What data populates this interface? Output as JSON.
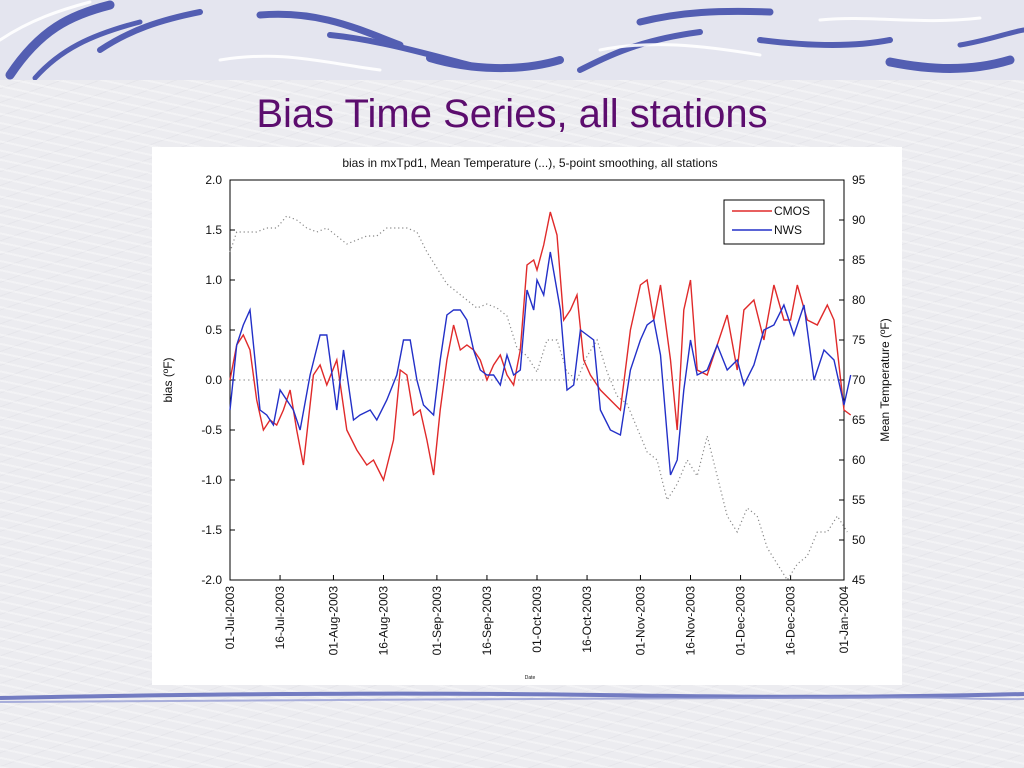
{
  "slide": {
    "title": "Bias Time Series, all stations"
  },
  "chart_data": {
    "type": "line",
    "title": "bias in mxTpd1, Mean Temperature (...), 5-point smoothing, all stations",
    "xlabel": "Date",
    "ylabel": "bias (ºF)",
    "y2label": "Mean Temperature (ºF)",
    "xlim": [
      "2003-07-01",
      "2004-01-01"
    ],
    "ylim": [
      -2.0,
      2.0
    ],
    "y2lim": [
      45,
      95
    ],
    "xticks": [
      "01-Jul-2003",
      "16-Jul-2003",
      "01-Aug-2003",
      "16-Aug-2003",
      "01-Sep-2003",
      "16-Sep-2003",
      "01-Oct-2003",
      "16-Oct-2003",
      "01-Nov-2003",
      "16-Nov-2003",
      "01-Dec-2003",
      "16-Dec-2003",
      "01-Jan-2004"
    ],
    "yticks": [
      "-2.0",
      "-1.5",
      "-1.0",
      "-0.5",
      "0.0",
      "0.5",
      "1.0",
      "1.5",
      "2.0"
    ],
    "y2ticks": [
      "45",
      "50",
      "55",
      "60",
      "65",
      "70",
      "75",
      "80",
      "85",
      "90",
      "95"
    ],
    "legend_position": "top-right",
    "grid": false,
    "zero_line": true,
    "series": [
      {
        "name": "CMOS",
        "axis": "left",
        "color": "#e02a2a",
        "x": [
          "2003-07-01",
          "2003-07-03",
          "2003-07-05",
          "2003-07-07",
          "2003-07-09",
          "2003-07-11",
          "2003-07-13",
          "2003-07-15",
          "2003-07-17",
          "2003-07-19",
          "2003-07-21",
          "2003-07-23",
          "2003-07-26",
          "2003-07-28",
          "2003-07-30",
          "2003-08-02",
          "2003-08-05",
          "2003-08-08",
          "2003-08-11",
          "2003-08-13",
          "2003-08-16",
          "2003-08-19",
          "2003-08-21",
          "2003-08-23",
          "2003-08-25",
          "2003-08-27",
          "2003-08-29",
          "2003-08-31",
          "2003-09-02",
          "2003-09-04",
          "2003-09-06",
          "2003-09-08",
          "2003-09-10",
          "2003-09-12",
          "2003-09-14",
          "2003-09-16",
          "2003-09-18",
          "2003-09-20",
          "2003-09-22",
          "2003-09-24",
          "2003-09-26",
          "2003-09-28",
          "2003-09-30",
          "2003-10-01",
          "2003-10-03",
          "2003-10-05",
          "2003-10-07",
          "2003-10-09",
          "2003-10-11",
          "2003-10-13",
          "2003-10-15",
          "2003-10-17",
          "2003-10-20",
          "2003-10-23",
          "2003-10-26",
          "2003-10-29",
          "2003-11-01",
          "2003-11-03",
          "2003-11-05",
          "2003-11-07",
          "2003-11-10",
          "2003-11-12",
          "2003-11-14",
          "2003-11-16",
          "2003-11-18",
          "2003-11-21",
          "2003-11-24",
          "2003-11-27",
          "2003-11-30",
          "2003-12-02",
          "2003-12-05",
          "2003-12-08",
          "2003-12-11",
          "2003-12-14",
          "2003-12-16",
          "2003-12-18",
          "2003-12-21",
          "2003-12-24",
          "2003-12-27",
          "2003-12-29",
          "2004-01-01",
          "2004-01-03"
        ],
        "values": [
          0.0,
          0.35,
          0.45,
          0.3,
          -0.2,
          -0.5,
          -0.4,
          -0.45,
          -0.3,
          -0.1,
          -0.5,
          -0.85,
          0.05,
          0.15,
          -0.05,
          0.2,
          -0.5,
          -0.7,
          -0.85,
          -0.8,
          -1.0,
          -0.6,
          0.1,
          0.05,
          -0.35,
          -0.3,
          -0.6,
          -0.95,
          -0.3,
          0.2,
          0.55,
          0.3,
          0.35,
          0.3,
          0.2,
          0.0,
          0.15,
          0.25,
          0.05,
          -0.05,
          0.3,
          1.15,
          1.2,
          1.1,
          1.35,
          1.68,
          1.45,
          0.6,
          0.7,
          0.85,
          0.2,
          0.05,
          -0.1,
          -0.2,
          -0.3,
          0.5,
          0.95,
          1.0,
          0.6,
          0.95,
          0.2,
          -0.5,
          0.7,
          1.0,
          0.1,
          0.05,
          0.35,
          0.65,
          0.1,
          0.7,
          0.8,
          0.4,
          0.95,
          0.6,
          0.6,
          0.95,
          0.6,
          0.55,
          0.75,
          0.6,
          -0.3,
          -0.35
        ]
      },
      {
        "name": "NWS",
        "axis": "left",
        "color": "#2330c8",
        "x": [
          "2003-07-01",
          "2003-07-03",
          "2003-07-05",
          "2003-07-07",
          "2003-07-10",
          "2003-07-12",
          "2003-07-14",
          "2003-07-16",
          "2003-07-18",
          "2003-07-20",
          "2003-07-22",
          "2003-07-25",
          "2003-07-28",
          "2003-07-30",
          "2003-08-02",
          "2003-08-04",
          "2003-08-07",
          "2003-08-09",
          "2003-08-12",
          "2003-08-14",
          "2003-08-17",
          "2003-08-20",
          "2003-08-22",
          "2003-08-24",
          "2003-08-26",
          "2003-08-28",
          "2003-08-31",
          "2003-09-02",
          "2003-09-04",
          "2003-09-06",
          "2003-09-08",
          "2003-09-10",
          "2003-09-12",
          "2003-09-14",
          "2003-09-16",
          "2003-09-18",
          "2003-09-20",
          "2003-09-22",
          "2003-09-24",
          "2003-09-26",
          "2003-09-28",
          "2003-09-30",
          "2003-10-01",
          "2003-10-03",
          "2003-10-05",
          "2003-10-08",
          "2003-10-10",
          "2003-10-12",
          "2003-10-14",
          "2003-10-16",
          "2003-10-18",
          "2003-10-20",
          "2003-10-23",
          "2003-10-26",
          "2003-10-29",
          "2003-11-01",
          "2003-11-03",
          "2003-11-05",
          "2003-11-07",
          "2003-11-10",
          "2003-11-12",
          "2003-11-14",
          "2003-11-16",
          "2003-11-18",
          "2003-11-21",
          "2003-11-24",
          "2003-11-27",
          "2003-11-30",
          "2003-12-02",
          "2003-12-05",
          "2003-12-08",
          "2003-12-11",
          "2003-12-14",
          "2003-12-17",
          "2003-12-20",
          "2003-12-23",
          "2003-12-26",
          "2003-12-29",
          "2004-01-01",
          "2004-01-03"
        ],
        "values": [
          -0.3,
          0.35,
          0.55,
          0.7,
          -0.3,
          -0.35,
          -0.45,
          -0.1,
          -0.2,
          -0.3,
          -0.5,
          0.05,
          0.45,
          0.45,
          -0.3,
          0.3,
          -0.4,
          -0.35,
          -0.3,
          -0.4,
          -0.2,
          0.05,
          0.4,
          0.4,
          0.0,
          -0.25,
          -0.35,
          0.2,
          0.65,
          0.7,
          0.7,
          0.6,
          0.3,
          0.1,
          0.05,
          0.05,
          -0.05,
          0.25,
          0.05,
          0.1,
          0.9,
          0.7,
          1.0,
          0.85,
          1.28,
          0.7,
          -0.1,
          -0.05,
          0.5,
          0.45,
          0.4,
          -0.3,
          -0.5,
          -0.55,
          0.1,
          0.4,
          0.55,
          0.6,
          0.25,
          -0.95,
          -0.8,
          -0.1,
          0.4,
          0.05,
          0.1,
          0.35,
          0.1,
          0.2,
          -0.05,
          0.15,
          0.5,
          0.55,
          0.75,
          0.45,
          0.75,
          0.0,
          0.3,
          0.2,
          -0.25,
          0.05
        ]
      },
      {
        "name": "",
        "axis": "right",
        "color": "#888888",
        "style": "dotted",
        "x": [
          "2003-07-01",
          "2003-07-03",
          "2003-07-06",
          "2003-07-09",
          "2003-07-12",
          "2003-07-15",
          "2003-07-18",
          "2003-07-21",
          "2003-07-24",
          "2003-07-27",
          "2003-07-30",
          "2003-08-02",
          "2003-08-05",
          "2003-08-08",
          "2003-08-11",
          "2003-08-14",
          "2003-08-17",
          "2003-08-20",
          "2003-08-23",
          "2003-08-26",
          "2003-08-29",
          "2003-09-01",
          "2003-09-04",
          "2003-09-07",
          "2003-09-10",
          "2003-09-13",
          "2003-09-16",
          "2003-09-19",
          "2003-09-22",
          "2003-09-25",
          "2003-09-28",
          "2003-10-01",
          "2003-10-04",
          "2003-10-07",
          "2003-10-10",
          "2003-10-13",
          "2003-10-16",
          "2003-10-19",
          "2003-10-22",
          "2003-10-25",
          "2003-10-28",
          "2003-10-31",
          "2003-11-03",
          "2003-11-06",
          "2003-11-09",
          "2003-11-12",
          "2003-11-15",
          "2003-11-18",
          "2003-11-21",
          "2003-11-24",
          "2003-11-27",
          "2003-11-30",
          "2003-12-03",
          "2003-12-06",
          "2003-12-09",
          "2003-12-12",
          "2003-12-15",
          "2003-12-18",
          "2003-12-21",
          "2003-12-24",
          "2003-12-27",
          "2003-12-30",
          "2004-01-02"
        ],
        "values": [
          86,
          88.5,
          88.5,
          88.5,
          89,
          89,
          90.5,
          90,
          89,
          88.5,
          89,
          88,
          87,
          87.5,
          88,
          88,
          89,
          89,
          89,
          88.5,
          86,
          84,
          82,
          81,
          80,
          79,
          79.5,
          79,
          78,
          74,
          73,
          71,
          75,
          75,
          71,
          70,
          73,
          75,
          71,
          68,
          67,
          64,
          61,
          60,
          55,
          57,
          60,
          58,
          63,
          58,
          53,
          51,
          54,
          53,
          49,
          47,
          45,
          47,
          48,
          51,
          51,
          53,
          51
        ]
      }
    ]
  }
}
